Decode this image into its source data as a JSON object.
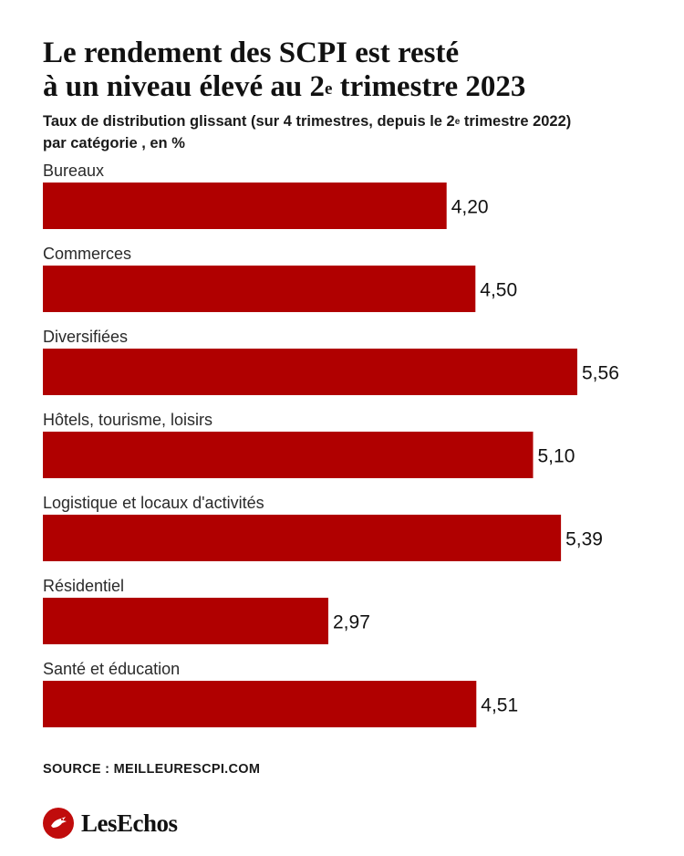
{
  "title": {
    "line1": "Le rendement des SCPI est resté",
    "line2_pre": "à un niveau élevé au 2",
    "line2_sup": "e",
    "line2_post": " trimestre 2023"
  },
  "subtitle": {
    "line1_pre": "Taux de distribution glissant (sur 4 trimestres, depuis le 2",
    "line1_sup": "e",
    "line1_post": " trimestre 2022)",
    "line2": "par catégorie , en %"
  },
  "chart_data": {
    "type": "bar",
    "orientation": "horizontal",
    "categories": [
      "Bureaux",
      "Commerces",
      "Diversifiées",
      "Hôtels, tourisme, loisirs",
      "Logistique et locaux d'activités",
      "Résidentiel",
      "Santé et éducation"
    ],
    "values": [
      4.2,
      4.5,
      5.56,
      5.1,
      5.39,
      2.97,
      4.51
    ],
    "value_labels": [
      "4,20",
      "4,50",
      "5,56",
      "5,10",
      "5,39",
      "2,97",
      "4,51"
    ],
    "xlim": [
      0,
      5.56
    ],
    "bar_color": "#b00000",
    "grid": false,
    "legend": "none"
  },
  "source": "SOURCE : MEILLEURESCPI.COM",
  "brand": {
    "name": "LesEchos",
    "color": "#c00c0c"
  }
}
